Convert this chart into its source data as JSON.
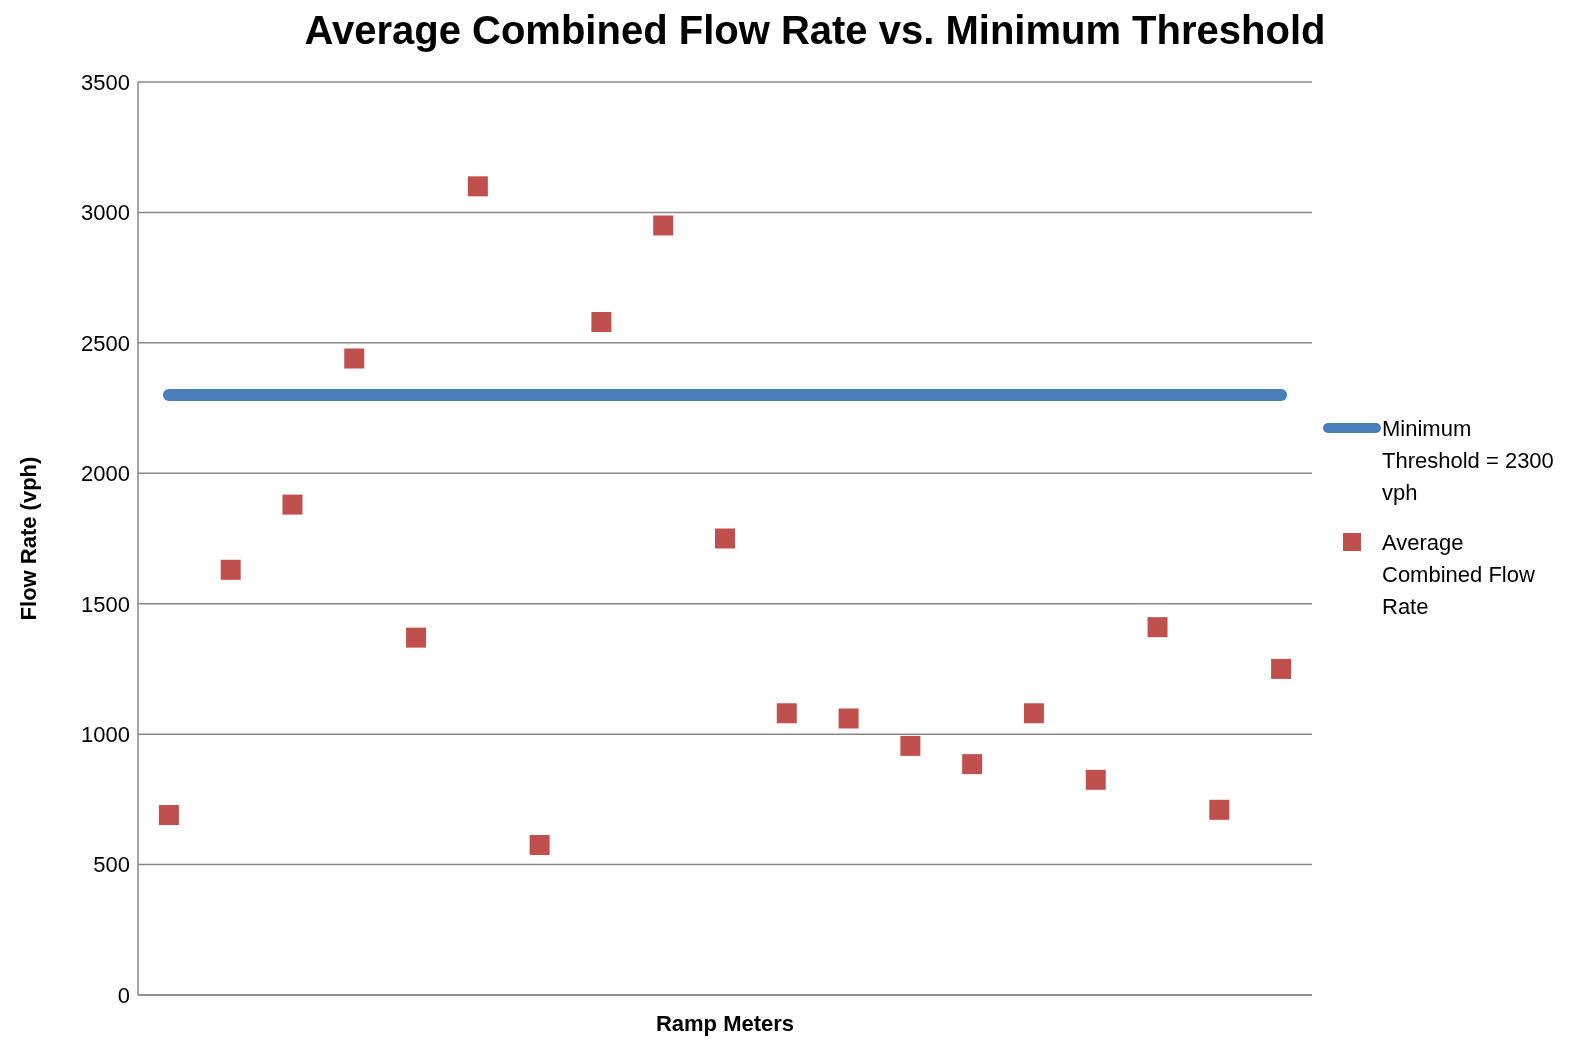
{
  "chart_data": {
    "type": "scatter",
    "title": "Average Combined Flow Rate vs. Minimum Threshold",
    "xlabel": "Ramp Meters",
    "ylabel": "Flow Rate (vph)",
    "categories": [
      null,
      null,
      null,
      null,
      null,
      null,
      null,
      null,
      null,
      null,
      null,
      null,
      null,
      null,
      null,
      null,
      null,
      null,
      null
    ],
    "series": [
      {
        "name": "Minimum Threshold = 2300 vph",
        "type": "line",
        "color": "#4a7ebb",
        "marker": "none",
        "line_style": "solid",
        "values": [
          2300,
          2300,
          2300,
          2300,
          2300,
          2300,
          2300,
          2300,
          2300,
          2300,
          2300,
          2300,
          2300,
          2300,
          2300,
          2300,
          2300,
          2300,
          2300
        ]
      },
      {
        "name": "Average Combined Flow Rate",
        "color": "#c0504d",
        "marker": "square",
        "values": [
          690,
          1630,
          1880,
          2440,
          1370,
          3100,
          575,
          2580,
          2950,
          1750,
          1080,
          1060,
          955,
          885,
          1080,
          825,
          1410,
          710,
          1250
        ]
      }
    ],
    "ylim": [
      0,
      3500
    ],
    "yticks": [
      0,
      500,
      1000,
      1500,
      2000,
      2500,
      3000,
      3500
    ],
    "grid": "y",
    "legend": "right",
    "tick_labels": "y"
  }
}
